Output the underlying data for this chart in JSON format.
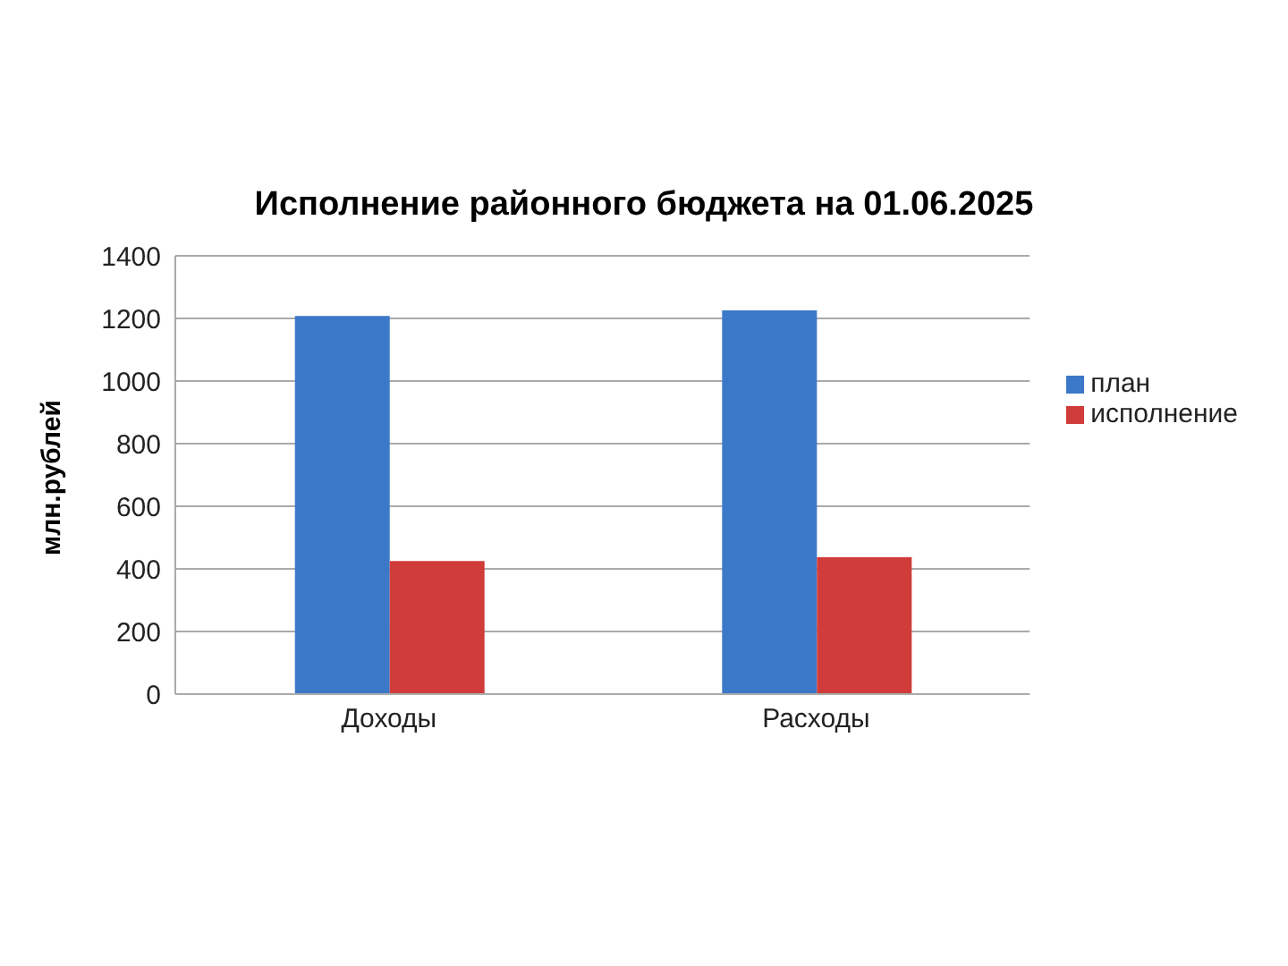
{
  "chart_data": {
    "type": "bar",
    "title": "Исполнение районного бюджета на 01.06.2025",
    "ylabel": "млн.рублей",
    "categories": [
      "Доходы",
      "Расходы"
    ],
    "series": [
      {
        "name": "план",
        "color": "#3c78c8",
        "values": [
          1208,
          1226
        ]
      },
      {
        "name": "исполнение",
        "color": "#d03c3a",
        "values": [
          425,
          437
        ]
      }
    ],
    "ylim": [
      0,
      1400
    ],
    "yticks": [
      0,
      200,
      400,
      600,
      800,
      1000,
      1200,
      1400
    ],
    "grid": "y",
    "legend": "right"
  }
}
